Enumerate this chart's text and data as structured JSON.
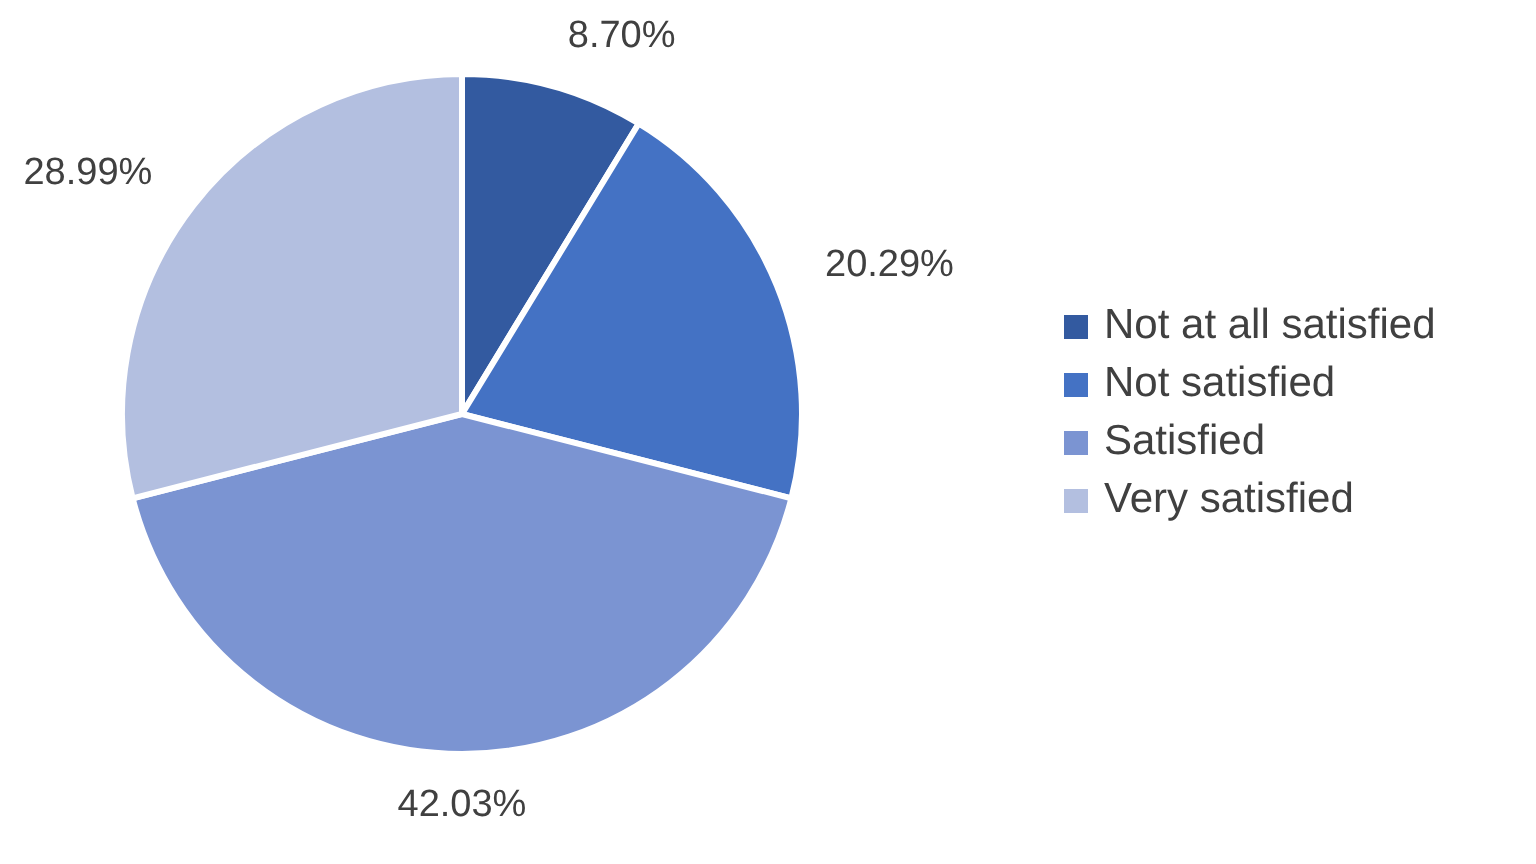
{
  "chart_data": {
    "type": "pie",
    "categories": [
      "Not at all satisfied",
      "Not satisfied",
      "Satisfied",
      "Very satisfied"
    ],
    "values": [
      8.7,
      20.29,
      42.03,
      28.99
    ],
    "colors": [
      "#335aa0",
      "#4472c4",
      "#7b94d2",
      "#b3bfe0"
    ],
    "value_labels": [
      "8.70%",
      "20.29%",
      "42.03%",
      "28.99%"
    ],
    "legend": "right"
  }
}
